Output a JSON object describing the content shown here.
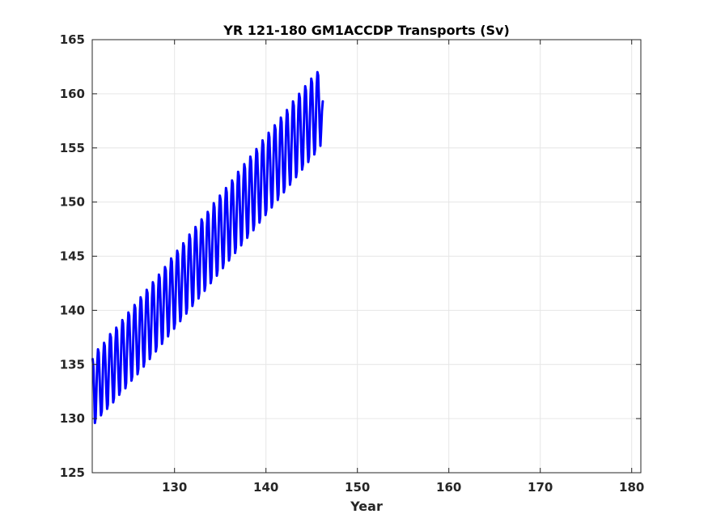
{
  "chart_data": {
    "type": "line",
    "title": "YR 121-180 GM1ACCDP Transports (Sv)",
    "xlabel": "Year",
    "ylabel": "",
    "xlim": [
      121,
      181
    ],
    "ylim": [
      125,
      165
    ],
    "xticks": [
      130,
      140,
      150,
      160,
      170,
      180
    ],
    "yticks": [
      125,
      130,
      135,
      140,
      145,
      150,
      155,
      160,
      165
    ],
    "grid": true,
    "legend": "none",
    "series": [
      {
        "style": "seasonal cycle (12 samples per year) around a rising trend",
        "samples_per_year": 12,
        "values": [
          135.5,
          134.8,
          132.4,
          129.6,
          130.1,
          132.6,
          135.0,
          136.4,
          136.1,
          134.3,
          131.9,
          130.3,
          130.7,
          133.1,
          135.7,
          137.0,
          136.7,
          134.9,
          132.5,
          130.9,
          131.3,
          133.8,
          136.4,
          137.8,
          137.5,
          135.6,
          133.2,
          131.5,
          131.9,
          134.4,
          137.0,
          138.4,
          138.1,
          136.3,
          133.8,
          132.2,
          132.6,
          135.1,
          137.7,
          139.1,
          138.8,
          136.9,
          134.5,
          132.8,
          133.3,
          135.8,
          138.4,
          139.8,
          139.5,
          137.6,
          135.1,
          133.5,
          133.9,
          136.4,
          139.1,
          140.5,
          140.2,
          138.3,
          135.8,
          134.1,
          134.6,
          137.1,
          139.8,
          141.2,
          140.9,
          139.0,
          136.5,
          134.8,
          135.3,
          137.8,
          140.5,
          141.9,
          141.6,
          139.7,
          137.2,
          135.5,
          136.0,
          138.5,
          141.2,
          142.6,
          142.3,
          140.4,
          137.9,
          136.2,
          136.7,
          139.2,
          141.9,
          143.3,
          143.0,
          141.1,
          138.6,
          136.9,
          137.4,
          139.9,
          142.6,
          144.0,
          143.7,
          141.8,
          139.3,
          137.6,
          138.1,
          140.7,
          143.4,
          144.8,
          144.5,
          142.5,
          140.0,
          138.3,
          138.8,
          141.4,
          144.1,
          145.5,
          145.2,
          143.2,
          140.7,
          139.0,
          139.5,
          142.1,
          144.8,
          146.2,
          145.9,
          143.9,
          141.4,
          139.7,
          140.2,
          142.8,
          145.5,
          147.0,
          146.6,
          144.7,
          142.1,
          140.4,
          140.9,
          143.5,
          146.2,
          147.7,
          147.3,
          145.4,
          142.8,
          141.1,
          141.6,
          144.2,
          147.0,
          148.4,
          148.1,
          146.1,
          143.5,
          141.8,
          142.3,
          144.9,
          147.7,
          149.1,
          148.8,
          146.8,
          144.2,
          142.5,
          143.0,
          145.6,
          148.4,
          149.9,
          149.5,
          147.5,
          144.9,
          143.2,
          143.7,
          146.3,
          149.1,
          150.6,
          150.2,
          148.2,
          145.6,
          143.9,
          144.4,
          147.0,
          149.8,
          151.3,
          150.9,
          148.9,
          146.3,
          144.6,
          145.1,
          147.8,
          150.6,
          152.0,
          151.7,
          149.6,
          147.0,
          145.3,
          145.8,
          148.5,
          151.3,
          152.8,
          152.4,
          150.3,
          147.7,
          146.0,
          146.5,
          149.2,
          152.0,
          153.5,
          153.1,
          151.0,
          148.4,
          146.7,
          147.2,
          149.9,
          152.7,
          154.2,
          153.8,
          151.7,
          149.1,
          147.4,
          147.9,
          150.6,
          153.4,
          154.9,
          154.5,
          152.5,
          149.8,
          148.1,
          148.6,
          151.3,
          154.2,
          155.7,
          155.3,
          153.2,
          150.5,
          148.8,
          149.3,
          152.0,
          154.9,
          156.4,
          156.0,
          153.9,
          151.2,
          149.5,
          150.0,
          152.7,
          155.6,
          157.1,
          156.7,
          154.6,
          151.9,
          150.2,
          150.7,
          153.4,
          156.3,
          157.8,
          157.4,
          155.3,
          152.6,
          150.9,
          151.4,
          154.1,
          157.0,
          158.5,
          158.1,
          156.0,
          153.3,
          151.6,
          152.1,
          154.9,
          157.8,
          159.3,
          158.9,
          156.7,
          154.0,
          152.3,
          152.8,
          155.6,
          158.5,
          160.0,
          159.6,
          157.4,
          154.7,
          153.0,
          153.5,
          156.3,
          159.2,
          160.7,
          160.3,
          158.1,
          155.4,
          153.7,
          154.2,
          157.0,
          159.9,
          161.4,
          161.0,
          158.8,
          156.1,
          154.4,
          154.9,
          157.7,
          160.6,
          162.0,
          161.7,
          159.6,
          156.9,
          155.2,
          156.8,
          158.4,
          159.3
        ]
      }
    ]
  },
  "colors": {
    "line": "#0000ff",
    "grid": "#e6e6e6",
    "axes": "#262626"
  }
}
